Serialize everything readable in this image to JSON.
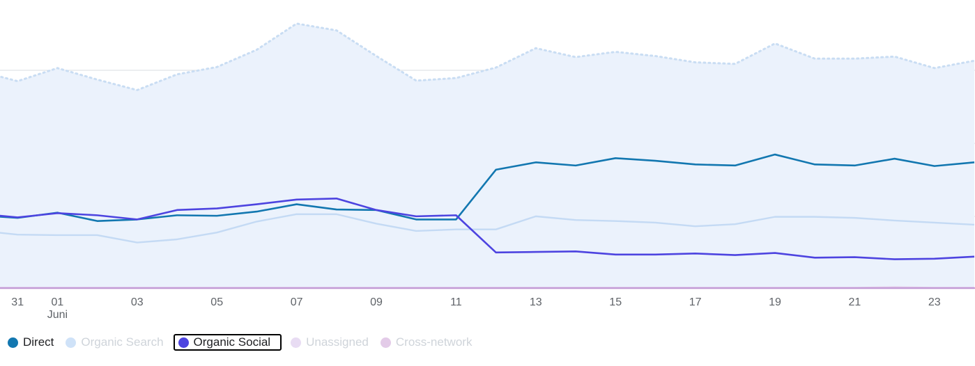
{
  "chart_data": {
    "type": "line",
    "x": [
      "30",
      "31",
      "01",
      "02",
      "03",
      "04",
      "05",
      "06",
      "07",
      "08",
      "09",
      "10",
      "11",
      "12",
      "13",
      "14",
      "15",
      "16",
      "17",
      "18",
      "19",
      "20",
      "21",
      "22",
      "23",
      "24"
    ],
    "x_tick_labels": [
      "31",
      "01",
      "03",
      "05",
      "07",
      "09",
      "11",
      "13",
      "15",
      "17",
      "19",
      "21",
      "23"
    ],
    "x_sublabel": "Juni",
    "gridlines": true,
    "legend_position": "bottom-left",
    "series": [
      {
        "name": "Direct",
        "style": "line",
        "color": "#1277b0",
        "active": true,
        "values": [
          13.9,
          13.4,
          14.4,
          12.8,
          13.1,
          13.9,
          13.8,
          14.6,
          16.0,
          15.0,
          14.9,
          13.1,
          13.1,
          22.6,
          24.0,
          23.4,
          24.8,
          24.3,
          23.6,
          23.4,
          25.5,
          23.6,
          23.4,
          24.7,
          23.3,
          24.0
        ]
      },
      {
        "name": "Organic Search",
        "style": "dotted-area",
        "color": "#c9ddf3",
        "active": false,
        "values": [
          41.5,
          39.5,
          42.0,
          39.8,
          37.8,
          40.8,
          42.2,
          45.5,
          50.5,
          49.2,
          44.3,
          39.6,
          40.1,
          42.1,
          45.8,
          44.1,
          45.1,
          44.3,
          43.1,
          42.8,
          46.7,
          43.8,
          43.8,
          44.2,
          42.0,
          43.4
        ]
      },
      {
        "name": "Organic Social",
        "style": "line",
        "color": "#4d44e0",
        "active": true,
        "values": [
          14.2,
          13.5,
          14.3,
          13.9,
          13.1,
          14.9,
          15.2,
          16.0,
          16.9,
          17.1,
          14.9,
          13.7,
          13.9,
          6.8,
          6.9,
          7.0,
          6.4,
          6.4,
          6.6,
          6.3,
          6.7,
          5.8,
          5.9,
          5.5,
          5.6,
          6.0
        ]
      },
      {
        "name": "Organic Search (trend)",
        "style": "line",
        "color": "#c4daf4",
        "active": false,
        "values": [
          11.0,
          10.2,
          10.1,
          10.1,
          8.7,
          9.3,
          10.6,
          12.7,
          14.1,
          14.1,
          12.3,
          10.9,
          11.2,
          11.2,
          13.7,
          13.0,
          12.8,
          12.5,
          11.8,
          12.2,
          13.6,
          13.6,
          13.4,
          12.9,
          12.5,
          12.1
        ]
      },
      {
        "name": "Unassigned",
        "style": "line",
        "color": "#e7d6ef",
        "active": false,
        "values": [
          0.05,
          0.05,
          0.05,
          0.05,
          0.05,
          0.05,
          0.05,
          0.05,
          0.05,
          0.05,
          0.05,
          0.05,
          0.05,
          0.05,
          0.05,
          0.05,
          0.05,
          0.05,
          0.05,
          0.05,
          0.05,
          0.05,
          0.05,
          0.2,
          0.05,
          0.05
        ]
      },
      {
        "name": "Cross-network",
        "style": "line",
        "color": "#c39bd6",
        "active": false,
        "values": [
          0,
          0,
          0,
          0,
          0,
          0,
          0,
          0,
          0,
          0,
          0,
          0,
          0,
          0,
          0,
          0,
          0,
          0,
          0,
          0,
          0,
          0,
          0,
          0,
          0,
          0
        ]
      }
    ],
    "ylim": [
      0,
      55
    ]
  },
  "legend": {
    "items": [
      {
        "name": "direct",
        "label": "Direct",
        "color": "#1277b0",
        "text_color": "#202124",
        "selected": false
      },
      {
        "name": "organic-search",
        "label": "Organic Search",
        "color": "#cfe2f8",
        "text_color": "#cfd4da",
        "selected": false
      },
      {
        "name": "organic-social",
        "label": "Organic Social",
        "color": "#4d44e0",
        "text_color": "#202124",
        "selected": true
      },
      {
        "name": "unassigned",
        "label": "Unassigned",
        "color": "#e8dcf3",
        "text_color": "#cfd4da",
        "selected": false
      },
      {
        "name": "cross-network",
        "label": "Cross-network",
        "color": "#e3cbe8",
        "text_color": "#cfd4da",
        "selected": false
      }
    ]
  },
  "colors": {
    "area_fill": "#ebf2fc",
    "grid": "#dadce0",
    "baseline": "#c39bd6"
  }
}
